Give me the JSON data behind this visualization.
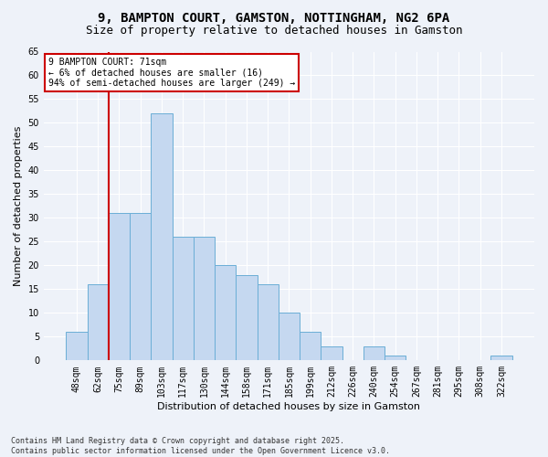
{
  "title1": "9, BAMPTON COURT, GAMSTON, NOTTINGHAM, NG2 6PA",
  "title2": "Size of property relative to detached houses in Gamston",
  "xlabel": "Distribution of detached houses by size in Gamston",
  "ylabel": "Number of detached properties",
  "categories": [
    "48sqm",
    "62sqm",
    "75sqm",
    "89sqm",
    "103sqm",
    "117sqm",
    "130sqm",
    "144sqm",
    "158sqm",
    "171sqm",
    "185sqm",
    "199sqm",
    "212sqm",
    "226sqm",
    "240sqm",
    "254sqm",
    "267sqm",
    "281sqm",
    "295sqm",
    "308sqm",
    "322sqm"
  ],
  "values": [
    6,
    16,
    31,
    31,
    52,
    26,
    26,
    20,
    18,
    16,
    10,
    6,
    3,
    0,
    3,
    1,
    0,
    0,
    0,
    0,
    1
  ],
  "bar_color": "#c5d8f0",
  "bar_edge_color": "#6baed6",
  "highlight_index": 1,
  "red_line_x": 1.5,
  "ylim": [
    0,
    65
  ],
  "yticks": [
    0,
    5,
    10,
    15,
    20,
    25,
    30,
    35,
    40,
    45,
    50,
    55,
    60,
    65
  ],
  "annotation_text": "9 BAMPTON COURT: 71sqm\n← 6% of detached houses are smaller (16)\n94% of semi-detached houses are larger (249) →",
  "annotation_box_color": "#ffffff",
  "annotation_box_edge_color": "#cc0000",
  "footer_text": "Contains HM Land Registry data © Crown copyright and database right 2025.\nContains public sector information licensed under the Open Government Licence v3.0.",
  "background_color": "#eef2f9",
  "grid_color": "#ffffff",
  "title_fontsize": 10,
  "subtitle_fontsize": 9,
  "axis_label_fontsize": 8,
  "tick_fontsize": 7,
  "annotation_fontsize": 7,
  "footer_fontsize": 6
}
